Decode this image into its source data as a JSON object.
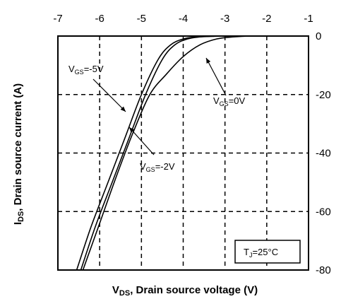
{
  "chart_data": {
    "type": "line",
    "xlabel_prefix": "V",
    "xlabel_sub": "DS",
    "xlabel_rest": ", Drain source voltage (V)",
    "ylabel_prefix": "I",
    "ylabel_sub": "DS",
    "ylabel_rest": ", Drain source current (A)",
    "xlim": [
      -7,
      -1
    ],
    "ylim": [
      -80,
      0
    ],
    "x_ticks": [
      "-7",
      "-6",
      "-5",
      "-4",
      "-3",
      "-2",
      "-1"
    ],
    "y_ticks": [
      "0",
      "-20",
      "-40",
      "-60",
      "-80"
    ],
    "grid": "dashed",
    "series": [
      {
        "name": "VGS=-5V",
        "x": [
          -6.55,
          -6.2,
          -5.8,
          -5.4,
          -5.0,
          -4.6,
          -4.3,
          -4.0,
          -3.7,
          -3.4,
          -3.1,
          -2.0,
          -1.0
        ],
        "y": [
          -80,
          -65,
          -50,
          -35,
          -20,
          -8,
          -3,
          -1,
          -0.3,
          -0.1,
          0,
          0,
          0
        ]
      },
      {
        "name": "VGS=-2V",
        "x": [
          -6.45,
          -6.1,
          -5.7,
          -5.3,
          -4.9,
          -4.5,
          -4.2,
          -3.9,
          -3.6,
          -3.3,
          -3.0,
          -2.0,
          -1.0
        ],
        "y": [
          -80,
          -65,
          -50,
          -35,
          -20,
          -8,
          -3,
          -1,
          -0.3,
          -0.1,
          0,
          0,
          0
        ]
      },
      {
        "name": "VGS=0V",
        "x": [
          -6.4,
          -6.0,
          -5.6,
          -5.2,
          -4.8,
          -4.4,
          -4.0,
          -3.6,
          -3.2,
          -2.8,
          -2.4,
          -2.0,
          -1.0
        ],
        "y": [
          -80,
          -64,
          -48,
          -33,
          -20,
          -13,
          -7,
          -3,
          -1,
          -0.3,
          0,
          0,
          0
        ]
      }
    ],
    "annotations": [
      {
        "main": "V",
        "sub": "GS",
        "rest": "=-5V"
      },
      {
        "main": "V",
        "sub": "GS",
        "rest": "=0V"
      },
      {
        "main": "V",
        "sub": "GS",
        "rest": "=-2V"
      }
    ],
    "inset_label": {
      "main": "T",
      "sub": "J",
      "rest": "=25°C"
    }
  }
}
